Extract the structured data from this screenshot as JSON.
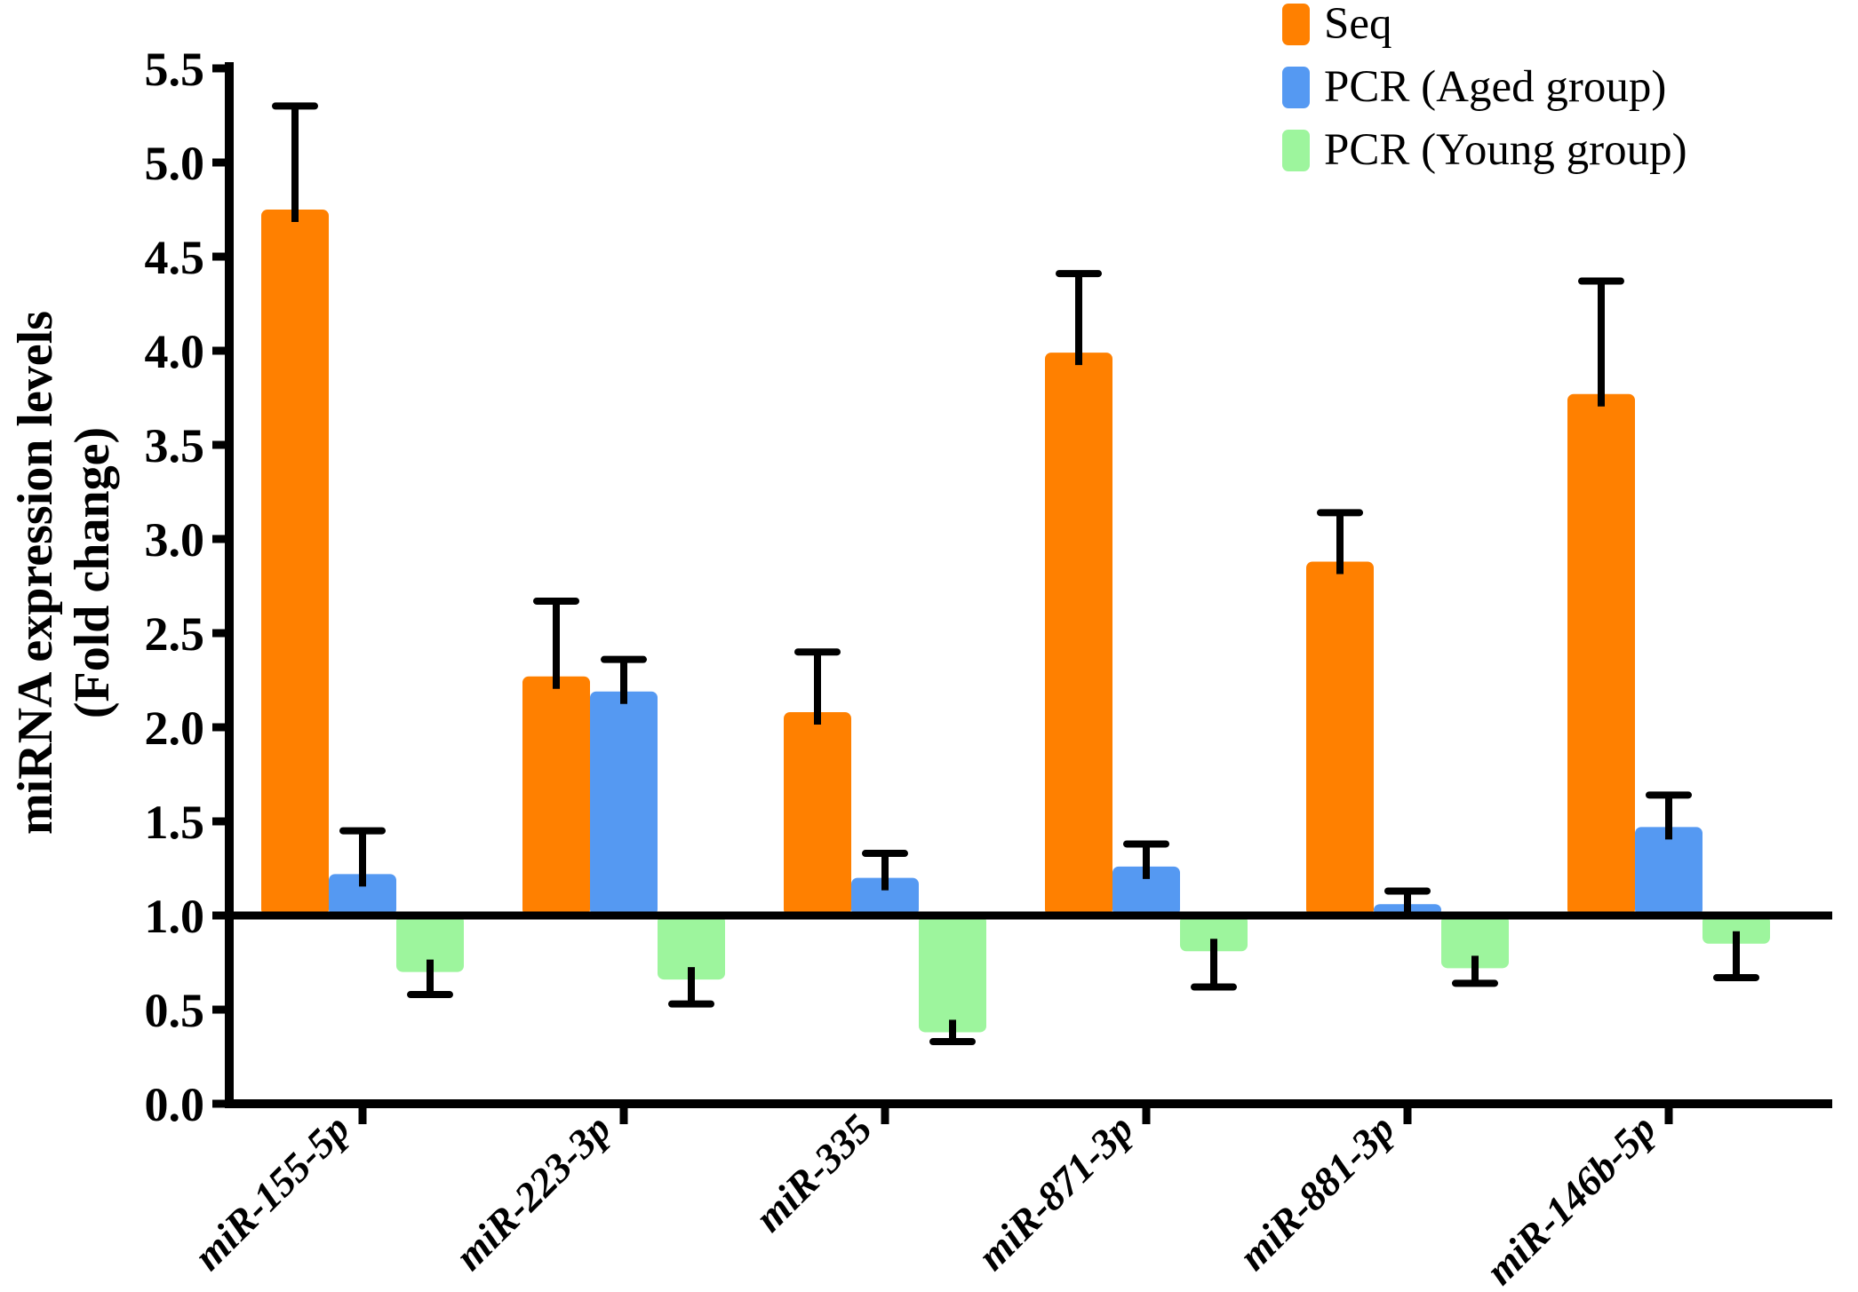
{
  "figure": {
    "background": "#ffffff"
  },
  "y_axis": {
    "title_line1": "miRNA expression levels",
    "title_line2": "(Fold change)",
    "tick_labels": [
      "0.0",
      "0.5",
      "1.0",
      "1.5",
      "2.0",
      "2.5",
      "3.0",
      "3.5",
      "4.0",
      "4.5",
      "5.0",
      "5.5"
    ],
    "min": 0.0,
    "max": 5.5,
    "step": 0.5
  },
  "x_axis": {
    "categories": [
      "miR-155-5p",
      "miR-223-3p",
      "miR-335",
      "miR-871-3p",
      "miR-881-3p",
      "miR-146b-5p"
    ]
  },
  "legend": {
    "items": [
      {
        "label": "Seq",
        "color": "#FF8000"
      },
      {
        "label": "PCR (Aged group)",
        "color": "#5599F2"
      },
      {
        "label": "PCR (Young group)",
        "color": "#9DF59D"
      }
    ]
  },
  "colors": {
    "axis": "#000000",
    "seq": "#FF8000",
    "pcr_aged": "#5599F2",
    "pcr_young": "#9DF59D"
  },
  "chart_data": {
    "type": "bar",
    "title": "",
    "xlabel": "",
    "ylabel": "miRNA expression levels (Fold change)",
    "ylim": [
      0,
      5.5
    ],
    "baseline": 1.0,
    "grid": false,
    "legend_position": "top-right",
    "categories": [
      "miR-155-5p",
      "miR-223-3p",
      "miR-335",
      "miR-871-3p",
      "miR-881-3p",
      "miR-146b-5p"
    ],
    "series": [
      {
        "name": "Seq",
        "color": "#FF8000",
        "error_direction": "up",
        "values": [
          4.75,
          2.27,
          2.08,
          3.99,
          2.88,
          3.77
        ],
        "errors": [
          0.55,
          0.4,
          0.32,
          0.42,
          0.26,
          0.6
        ]
      },
      {
        "name": "PCR (Aged group)",
        "color": "#5599F2",
        "error_direction": "up",
        "values": [
          1.22,
          2.19,
          1.2,
          1.26,
          1.06,
          1.47
        ],
        "errors": [
          0.23,
          0.17,
          0.13,
          0.12,
          0.07,
          0.17
        ]
      },
      {
        "name": "PCR (Young group)",
        "color": "#9DF59D",
        "error_direction": "down",
        "values": [
          0.7,
          0.66,
          0.38,
          0.81,
          0.72,
          0.85
        ],
        "errors": [
          0.12,
          0.13,
          0.05,
          0.19,
          0.08,
          0.18
        ]
      }
    ]
  }
}
